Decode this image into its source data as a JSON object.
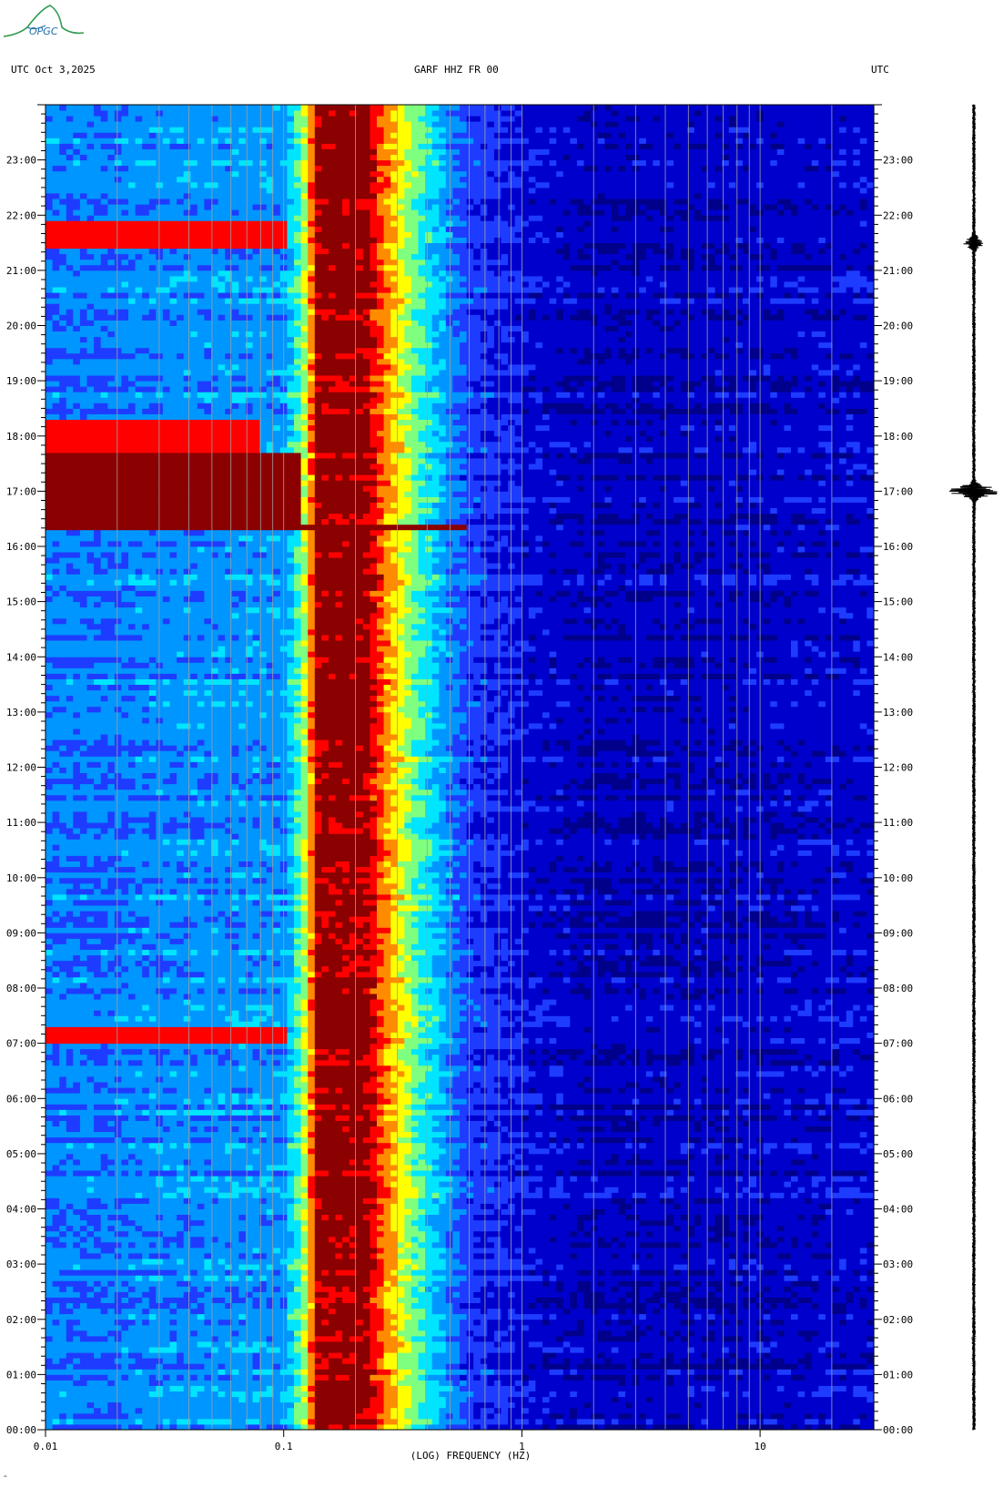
{
  "header": {
    "left": "UTC  Oct 3,2025",
    "center": "GARF HHZ FR 00",
    "right": "UTC"
  },
  "logo": {
    "text": "OPGC"
  },
  "chart_data": {
    "type": "heatmap",
    "title": "GARF HHZ FR 00",
    "date": "Oct 3,2025",
    "timezone": "UTC",
    "xlabel": "(LOG) FREQUENCY (HZ)",
    "x_scale": "log",
    "xlim": [
      0.01,
      30
    ],
    "x_ticks": [
      {
        "value": 0.01,
        "label": "0.01"
      },
      {
        "value": 0.1,
        "label": "0.1"
      },
      {
        "value": 1,
        "label": "1"
      },
      {
        "value": 10,
        "label": "10"
      }
    ],
    "ylim_hours": [
      0,
      24
    ],
    "y_ticks": [
      "00:00",
      "01:00",
      "02:00",
      "03:00",
      "04:00",
      "05:00",
      "06:00",
      "07:00",
      "08:00",
      "09:00",
      "10:00",
      "11:00",
      "12:00",
      "13:00",
      "14:00",
      "15:00",
      "16:00",
      "17:00",
      "18:00",
      "19:00",
      "20:00",
      "21:00",
      "22:00",
      "23:00"
    ],
    "gridlines_hz": [
      0.02,
      0.03,
      0.04,
      0.05,
      0.06,
      0.07,
      0.08,
      0.09,
      0.1,
      0.2,
      0.3,
      0.4,
      0.5,
      0.6,
      0.7,
      0.8,
      0.9,
      1,
      2,
      3,
      4,
      5,
      6,
      7,
      8,
      9,
      10,
      20
    ],
    "colormap": [
      "#00008b",
      "#0000cd",
      "#1e3cff",
      "#0096ff",
      "#00e5ff",
      "#7fff7f",
      "#ffff00",
      "#ff8c00",
      "#ff0000",
      "#8b0000"
    ],
    "background_spectrum": [
      {
        "hz": 0.01,
        "level": 0.3
      },
      {
        "hz": 0.02,
        "level": 0.3
      },
      {
        "hz": 0.025,
        "level": 0.32
      },
      {
        "hz": 0.1,
        "level": 0.34
      },
      {
        "hz": 0.12,
        "level": 0.55
      },
      {
        "hz": 0.14,
        "level": 1.0
      },
      {
        "hz": 0.22,
        "level": 1.0
      },
      {
        "hz": 0.27,
        "level": 0.78
      },
      {
        "hz": 0.35,
        "level": 0.55
      },
      {
        "hz": 0.5,
        "level": 0.32
      },
      {
        "hz": 0.6,
        "level": 0.22
      },
      {
        "hz": 1,
        "level": 0.14
      },
      {
        "hz": 2,
        "level": 0.08
      },
      {
        "hz": 10,
        "level": 0.1
      },
      {
        "hz": 30,
        "level": 0.12
      }
    ],
    "events": [
      {
        "start": 7.05,
        "end": 7.3,
        "fmax": 0.1,
        "level": 0.9
      },
      {
        "start": 16.3,
        "end": 16.45,
        "fmax": 0.6,
        "level": 0.95
      },
      {
        "start": 16.45,
        "end": 17.7,
        "fmax": 0.12,
        "level": 1.0
      },
      {
        "start": 17.7,
        "end": 18.3,
        "fmax": 0.08,
        "level": 0.85
      },
      {
        "start": 21.4,
        "end": 21.9,
        "fmax": 0.1,
        "level": 0.9
      }
    ],
    "trace": {
      "baseline_amplitude": 2,
      "bursts": [
        {
          "hour": 17.0,
          "amplitude": 30
        },
        {
          "hour": 21.5,
          "amplitude": 10
        }
      ]
    }
  }
}
